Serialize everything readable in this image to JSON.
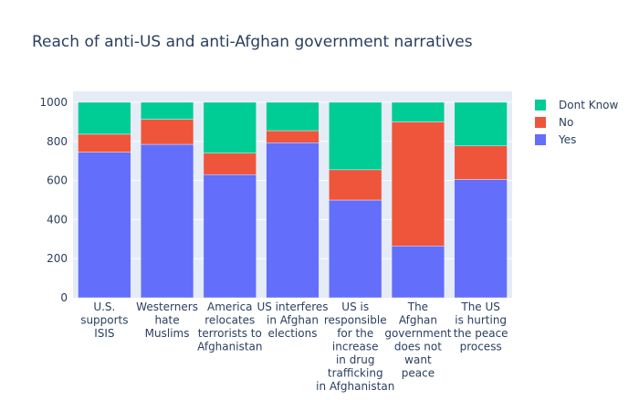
{
  "chart_data": {
    "type": "bar",
    "stacked": true,
    "title": "Reach of anti-US and anti-Afghan government narratives",
    "xlabel": "",
    "ylabel": "",
    "ylim": [
      0,
      1000
    ],
    "yticks": [
      0,
      200,
      400,
      600,
      800,
      1000
    ],
    "grid": true,
    "legend_position": "top-right",
    "categories": [
      [
        "U.S.",
        "supports",
        "ISIS"
      ],
      [
        "Westerners",
        "hate",
        "Muslims"
      ],
      [
        "America",
        "relocates",
        "terrorists to",
        "Afghanistan"
      ],
      [
        "US interferes",
        "in Afghan",
        "elections"
      ],
      [
        "US is",
        "responsible",
        "for the",
        "increase",
        "in drug",
        "trafficking",
        "in Afghanistan"
      ],
      [
        "The",
        "Afghan",
        "government",
        "does not",
        "want",
        "peace"
      ],
      [
        "The US",
        "is hurting",
        "the peace",
        "process"
      ]
    ],
    "series": [
      {
        "name": "Yes",
        "color": "#636efa",
        "values": [
          745,
          785,
          630,
          793,
          500,
          265,
          605
        ]
      },
      {
        "name": "No",
        "color": "#ef553b",
        "values": [
          92,
          128,
          110,
          62,
          155,
          635,
          172
        ]
      },
      {
        "name": "Dont Know",
        "color": "#00cc96",
        "values": [
          163,
          87,
          260,
          145,
          345,
          100,
          223
        ]
      }
    ],
    "legend_order": [
      "Dont Know",
      "No",
      "Yes"
    ]
  }
}
